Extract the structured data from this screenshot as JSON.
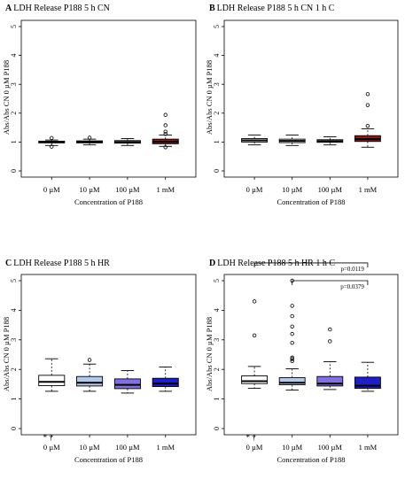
{
  "chart_data": [
    {
      "type": "box",
      "panel_letter": "A",
      "title": "LDH Release P188 5 h CN",
      "ylabel": "Abs/Abs CN 0 µM P188",
      "xlabel": "Concentration of P188",
      "ylim": [
        0,
        5
      ],
      "yticks": [
        "0",
        "1",
        "2",
        "3",
        "4",
        "5"
      ],
      "categories": [
        "0 µM",
        "10 µM",
        "100 µM",
        "1 mM"
      ],
      "fills": [
        "#ffffff",
        "#ffffff",
        "#ffffff",
        "#8b1a1a"
      ],
      "boxes": [
        {
          "whisker_low": 0.88,
          "q1": 0.97,
          "median": 1.0,
          "q3": 1.03,
          "whisker_high": 1.07,
          "outliers": [
            0.84,
            1.14
          ]
        },
        {
          "whisker_low": 0.9,
          "q1": 0.97,
          "median": 1.0,
          "q3": 1.04,
          "whisker_high": 1.1,
          "outliers": [
            1.15
          ]
        },
        {
          "whisker_low": 0.88,
          "q1": 0.96,
          "median": 1.0,
          "q3": 1.05,
          "whisker_high": 1.12,
          "outliers": []
        },
        {
          "whisker_low": 0.85,
          "q1": 0.94,
          "median": 1.01,
          "q3": 1.1,
          "whisker_high": 1.24,
          "outliers": [
            0.82,
            1.28,
            1.36,
            1.58,
            1.94
          ]
        }
      ],
      "annotations": [],
      "brackets": []
    },
    {
      "type": "box",
      "panel_letter": "B",
      "title": "LDH Release P188 5 h CN 1 h C",
      "ylabel": "Abs/Abs CN 0 µM P188",
      "xlabel": "Concentration of P188",
      "ylim": [
        0,
        5
      ],
      "yticks": [
        "0",
        "1",
        "2",
        "3",
        "4",
        "5"
      ],
      "categories": [
        "0 µM",
        "10 µM",
        "100 µM",
        "1 mM"
      ],
      "fills": [
        "#ffffff",
        "#ffffff",
        "#ffffff",
        "#8b1a1a"
      ],
      "boxes": [
        {
          "whisker_low": 0.9,
          "q1": 1.0,
          "median": 1.06,
          "q3": 1.12,
          "whisker_high": 1.24,
          "outliers": []
        },
        {
          "whisker_low": 0.88,
          "q1": 0.98,
          "median": 1.04,
          "q3": 1.1,
          "whisker_high": 1.24,
          "outliers": []
        },
        {
          "whisker_low": 0.9,
          "q1": 0.99,
          "median": 1.03,
          "q3": 1.08,
          "whisker_high": 1.18,
          "outliers": []
        },
        {
          "whisker_low": 0.82,
          "q1": 1.02,
          "median": 1.1,
          "q3": 1.22,
          "whisker_high": 1.46,
          "outliers": [
            1.56,
            2.28,
            2.66
          ]
        }
      ],
      "annotations": [],
      "brackets": []
    },
    {
      "type": "box",
      "panel_letter": "C",
      "title": "LDH Release P188 5 h HR",
      "ylabel": "Abs/Abs CN 0 µM P188",
      "xlabel": "Concentration of P188",
      "ylim": [
        0,
        5
      ],
      "yticks": [
        "0",
        "1",
        "2",
        "3",
        "4",
        "5"
      ],
      "categories": [
        "0 µM",
        "10 µM",
        "100 µM",
        "1 mM"
      ],
      "fills": [
        "#ffffff",
        "#b4c8e8",
        "#8270e0",
        "#1f1fc8"
      ],
      "boxes": [
        {
          "whisker_low": 1.26,
          "q1": 1.45,
          "median": 1.58,
          "q3": 1.8,
          "whisker_high": 2.36,
          "outliers": []
        },
        {
          "whisker_low": 1.26,
          "q1": 1.44,
          "median": 1.55,
          "q3": 1.76,
          "whisker_high": 2.18,
          "outliers": [
            2.32
          ]
        },
        {
          "whisker_low": 1.2,
          "q1": 1.35,
          "median": 1.48,
          "q3": 1.68,
          "whisker_high": 1.96,
          "outliers": []
        },
        {
          "whisker_low": 1.26,
          "q1": 1.42,
          "median": 1.52,
          "q3": 1.7,
          "whisker_high": 2.08,
          "outliers": []
        }
      ],
      "annotations": [
        {
          "category": "0 µM",
          "text": "* †",
          "y": 0.0
        }
      ],
      "brackets": []
    },
    {
      "type": "box",
      "panel_letter": "D",
      "title": "LDH Release P188 5 h HR 1 h C",
      "ylabel": "Abs/Abs CN 0 µM P188",
      "xlabel": "Concentration of P188",
      "ylim": [
        0,
        5
      ],
      "yticks": [
        "0",
        "1",
        "2",
        "3",
        "4",
        "5"
      ],
      "categories": [
        "0 µM",
        "10 µM",
        "100 µM",
        "1 mM"
      ],
      "fills": [
        "#ffffff",
        "#b4c8e8",
        "#8270e0",
        "#1f1fc8"
      ],
      "boxes": [
        {
          "whisker_low": 1.36,
          "q1": 1.52,
          "median": 1.6,
          "q3": 1.78,
          "whisker_high": 2.1,
          "outliers": [
            3.15,
            4.3
          ]
        },
        {
          "whisker_low": 1.3,
          "q1": 1.48,
          "median": 1.55,
          "q3": 1.72,
          "whisker_high": 2.02,
          "outliers": [
            2.28,
            2.35,
            2.4,
            2.9,
            3.2,
            3.45,
            3.8,
            4.15,
            5.0
          ]
        },
        {
          "whisker_low": 1.32,
          "q1": 1.44,
          "median": 1.52,
          "q3": 1.76,
          "whisker_high": 2.26,
          "outliers": [
            2.95,
            3.35
          ]
        },
        {
          "whisker_low": 1.26,
          "q1": 1.36,
          "median": 1.45,
          "q3": 1.74,
          "whisker_high": 2.24,
          "outliers": []
        }
      ],
      "annotations": [
        {
          "category": "0 µM",
          "text": "* †",
          "y": 0.0
        }
      ],
      "brackets": [
        {
          "from": "0 µM",
          "to": "1 mM",
          "y": 5.6,
          "label": "p=0.0119"
        },
        {
          "from": "10 µM",
          "to": "1 mM",
          "y": 5.0,
          "label": "p=0.0379"
        }
      ]
    }
  ]
}
